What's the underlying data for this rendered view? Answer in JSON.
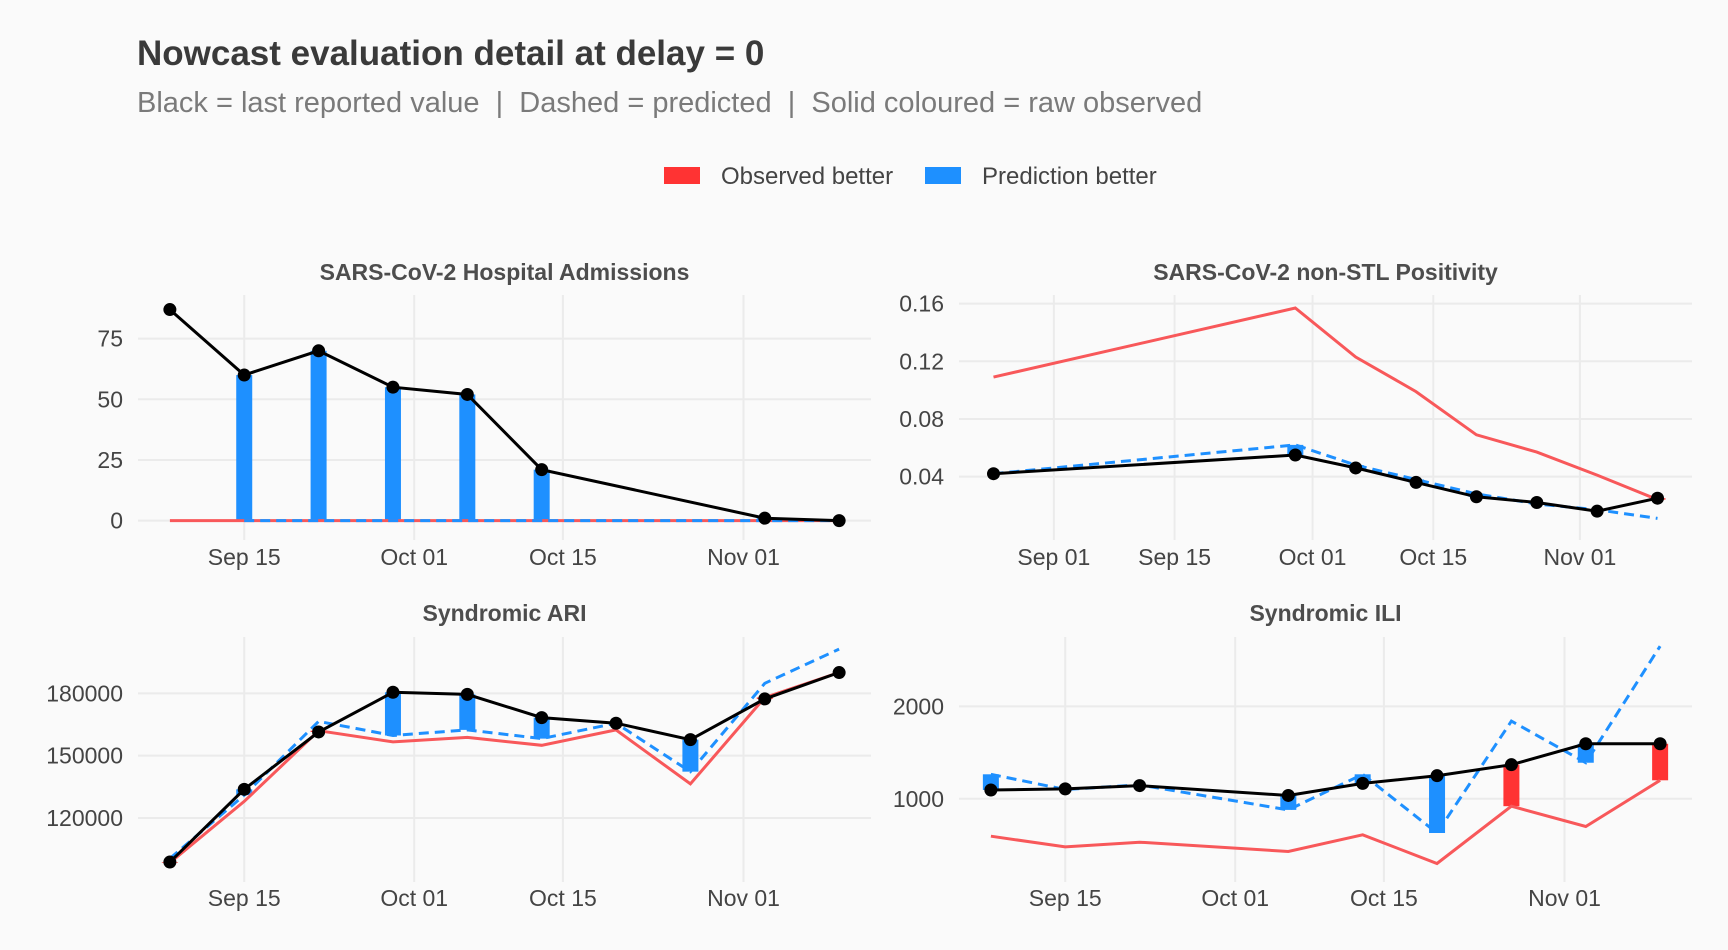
{
  "title": "Nowcast evaluation detail at delay = 0",
  "subtitle": "Black = last reported value  |  Dashed = predicted  |  Solid coloured = raw observed",
  "legend": [
    {
      "label": "Observed better",
      "color": "#ff3333"
    },
    {
      "label": "Prediction better",
      "color": "#1e90ff"
    }
  ],
  "colors": {
    "last": "#000000",
    "predicted": "#1e90ff",
    "observed_line": "#f8585a",
    "observed_better": "#ff3333",
    "prediction_better": "#1e90ff"
  },
  "chart_data": [
    {
      "type": "line",
      "title": "SARS-CoV-2 Hospital Admissions",
      "xlim": [
        "09-05",
        "11-13"
      ],
      "ylim": [
        -8,
        93
      ],
      "xticks": [
        {
          "date": "09-15",
          "label": "Sep 15"
        },
        {
          "date": "10-01",
          "label": "Oct 01"
        },
        {
          "date": "10-15",
          "label": "Oct 15"
        },
        {
          "date": "11-01",
          "label": "Nov 01"
        }
      ],
      "yticks": [
        {
          "value": 0,
          "label": "0"
        },
        {
          "value": 25,
          "label": "25"
        },
        {
          "value": 50,
          "label": "50"
        },
        {
          "value": 75,
          "label": "75"
        }
      ],
      "x": [
        "09-08",
        "09-15",
        "09-22",
        "09-29",
        "10-06",
        "10-13",
        "11-03",
        "11-10"
      ],
      "series": [
        {
          "name": "observed",
          "values": [
            0,
            0,
            0,
            0,
            0,
            0,
            0,
            0
          ]
        },
        {
          "name": "predicted",
          "values": [
            null,
            0,
            0,
            0,
            0,
            0,
            0,
            0
          ]
        },
        {
          "name": "last reported",
          "values": [
            87,
            60,
            70,
            55,
            52,
            21,
            1,
            0
          ]
        }
      ]
    },
    {
      "type": "line",
      "title": "SARS-CoV-2 non-STL Positivity",
      "xlim": [
        "08-21",
        "11-14"
      ],
      "ylim": [
        -0.004,
        0.166
      ],
      "xticks": [
        {
          "date": "09-01",
          "label": "Sep 01"
        },
        {
          "date": "09-15",
          "label": "Sep 15"
        },
        {
          "date": "10-01",
          "label": "Oct 01"
        },
        {
          "date": "10-15",
          "label": "Oct 15"
        },
        {
          "date": "11-01",
          "label": "Nov 01"
        }
      ],
      "yticks": [
        {
          "value": 0.04,
          "label": "0.04"
        },
        {
          "value": 0.08,
          "label": "0.08"
        },
        {
          "value": 0.12,
          "label": "0.12"
        },
        {
          "value": 0.16,
          "label": "0.16"
        }
      ],
      "x": [
        "08-25",
        "09-29",
        "10-06",
        "10-13",
        "10-20",
        "10-27",
        "11-03",
        "11-10"
      ],
      "series": [
        {
          "name": "observed",
          "values": [
            0.109,
            0.157,
            0.123,
            0.099,
            0.069,
            0.057,
            0.041,
            0.024
          ]
        },
        {
          "name": "predicted",
          "values": [
            0.042,
            0.062,
            0.048,
            0.038,
            0.028,
            0.021,
            0.017,
            0.011
          ]
        },
        {
          "name": "last reported",
          "values": [
            0.042,
            0.055,
            0.046,
            0.036,
            0.026,
            0.022,
            0.016,
            0.025
          ]
        }
      ]
    },
    {
      "type": "line",
      "title": "Syndromic ARI",
      "xlim": [
        "09-05",
        "11-13"
      ],
      "ylim": [
        89200,
        207100
      ],
      "xticks": [
        {
          "date": "09-15",
          "label": "Sep 15"
        },
        {
          "date": "10-01",
          "label": "Oct 01"
        },
        {
          "date": "10-15",
          "label": "Oct 15"
        },
        {
          "date": "11-01",
          "label": "Nov 01"
        }
      ],
      "yticks": [
        {
          "value": 120000,
          "label": "120000"
        },
        {
          "value": 150000,
          "label": "150000"
        },
        {
          "value": 180000,
          "label": "180000"
        }
      ],
      "x": [
        "09-08",
        "09-15",
        "09-22",
        "09-29",
        "10-06",
        "10-13",
        "10-20",
        "10-27",
        "11-03",
        "11-10"
      ],
      "series": [
        {
          "name": "observed",
          "values": [
            98500,
            128000,
            162000,
            156600,
            158800,
            155000,
            162400,
            136400,
            178000,
            190000
          ]
        },
        {
          "name": "predicted",
          "values": [
            100500,
            131000,
            166500,
            159700,
            162400,
            158200,
            165600,
            142300,
            184800,
            201300
          ]
        },
        {
          "name": "last reported",
          "values": [
            98800,
            133800,
            161400,
            180500,
            179500,
            168300,
            165600,
            157700,
            177300,
            190000
          ]
        }
      ]
    },
    {
      "type": "line",
      "title": "Syndromic ILI",
      "xlim": [
        "09-05",
        "11-13"
      ],
      "ylim": [
        100,
        2750
      ],
      "xticks": [
        {
          "date": "09-15",
          "label": "Sep 15"
        },
        {
          "date": "10-01",
          "label": "Oct 01"
        },
        {
          "date": "10-15",
          "label": "Oct 15"
        },
        {
          "date": "11-01",
          "label": "Nov 01"
        }
      ],
      "yticks": [
        {
          "value": 1000,
          "label": "1000"
        },
        {
          "value": 2000,
          "label": "2000"
        }
      ],
      "x": [
        "09-08",
        "09-15",
        "09-22",
        "10-06",
        "10-13",
        "10-20",
        "10-27",
        "11-03",
        "11-10"
      ],
      "series": [
        {
          "name": "observed",
          "values": [
            595,
            480,
            530,
            430,
            610,
            300,
            920,
            700,
            1200
          ]
        },
        {
          "name": "predicted",
          "values": [
            1265,
            1100,
            1150,
            880,
            1265,
            630,
            1840,
            1390,
            2650
          ]
        },
        {
          "name": "last reported",
          "values": [
            1095,
            1107,
            1143,
            1036,
            1167,
            1250,
            1369,
            1595,
            1595
          ]
        }
      ]
    }
  ]
}
